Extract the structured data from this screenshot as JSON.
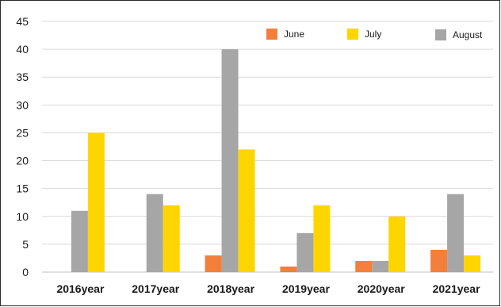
{
  "chart_data": {
    "type": "bar",
    "title": "",
    "xlabel": "",
    "ylabel": "",
    "categories": [
      "2016year",
      "2017year",
      "2018year",
      "2019year",
      "2020year",
      "2021year"
    ],
    "series": [
      {
        "name": "June",
        "color": "#f47f3b",
        "values": [
          0,
          0,
          3,
          1,
          2,
          4
        ]
      },
      {
        "name": "July",
        "color": "#ffd500",
        "values": [
          25,
          12,
          22,
          12,
          10,
          3
        ]
      },
      {
        "name": "August",
        "color": "#a6a6a6",
        "values": [
          11,
          14,
          40,
          7,
          2,
          14
        ]
      }
    ],
    "bar_order": [
      "June",
      "August",
      "July"
    ],
    "ylim": [
      0,
      45
    ],
    "yticks": [
      "0",
      "5",
      "10",
      "15",
      "20",
      "25",
      "30",
      "35",
      "40",
      "45"
    ],
    "grid": true,
    "legend_position": "top-right"
  }
}
